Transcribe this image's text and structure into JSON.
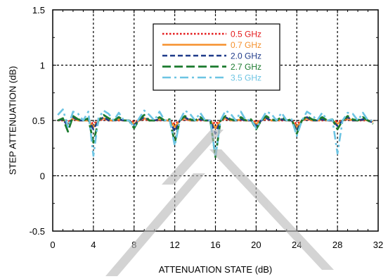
{
  "chart_data": {
    "type": "line",
    "xlabel": "ATTENUATION STATE (dB)",
    "ylabel": "STEP ATTENUATION (dB)",
    "xlim": [
      0,
      32
    ],
    "ylim": [
      -0.5,
      1.5
    ],
    "xticks": [
      0,
      4,
      8,
      12,
      16,
      20,
      24,
      28,
      32
    ],
    "yticks": [
      -0.5,
      0,
      0.5,
      1,
      1.5
    ],
    "xtick_labels": [
      "0",
      "4",
      "8",
      "12",
      "16",
      "20",
      "24",
      "28",
      "32"
    ],
    "ytick_labels": [
      "-0.5",
      "0",
      "0.5",
      "1",
      "1.5"
    ],
    "grid": true,
    "legend_position": "top-right",
    "x": [
      0.5,
      1,
      1.5,
      2,
      2.5,
      3,
      3.5,
      4,
      4.5,
      5,
      5.5,
      6,
      6.5,
      7,
      7.5,
      8,
      8.5,
      9,
      9.5,
      10,
      10.5,
      11,
      11.5,
      12,
      12.5,
      13,
      13.5,
      14,
      14.5,
      15,
      15.5,
      16,
      16.5,
      17,
      17.5,
      18,
      18.5,
      19,
      19.5,
      20,
      20.5,
      21,
      21.5,
      22,
      22.5,
      23,
      23.5,
      24,
      24.5,
      25,
      25.5,
      26,
      26.5,
      27,
      27.5,
      28,
      28.5,
      29,
      29.5,
      30,
      30.5,
      31,
      31.5
    ],
    "series": [
      {
        "name": "0.5 GHz",
        "color": "#e41a1c",
        "dash": "dotted",
        "values": [
          0.5,
          0.5,
          0.49,
          0.51,
          0.5,
          0.5,
          0.5,
          0.47,
          0.5,
          0.51,
          0.5,
          0.5,
          0.5,
          0.5,
          0.5,
          0.49,
          0.5,
          0.51,
          0.5,
          0.5,
          0.5,
          0.5,
          0.5,
          0.47,
          0.5,
          0.51,
          0.5,
          0.5,
          0.5,
          0.5,
          0.5,
          0.47,
          0.5,
          0.51,
          0.5,
          0.5,
          0.5,
          0.5,
          0.5,
          0.49,
          0.5,
          0.51,
          0.5,
          0.5,
          0.5,
          0.5,
          0.5,
          0.47,
          0.5,
          0.51,
          0.5,
          0.5,
          0.5,
          0.5,
          0.5,
          0.49,
          0.5,
          0.51,
          0.5,
          0.5,
          0.5,
          0.5,
          0.5
        ]
      },
      {
        "name": "0.7 GHz",
        "color": "#f5902c",
        "dash": "solid",
        "values": [
          0.5,
          0.51,
          0.47,
          0.52,
          0.5,
          0.5,
          0.5,
          0.44,
          0.5,
          0.52,
          0.5,
          0.5,
          0.51,
          0.5,
          0.5,
          0.47,
          0.5,
          0.52,
          0.5,
          0.5,
          0.51,
          0.5,
          0.5,
          0.44,
          0.5,
          0.52,
          0.5,
          0.5,
          0.51,
          0.5,
          0.5,
          0.43,
          0.5,
          0.52,
          0.5,
          0.5,
          0.51,
          0.5,
          0.5,
          0.47,
          0.5,
          0.52,
          0.5,
          0.5,
          0.51,
          0.5,
          0.5,
          0.44,
          0.5,
          0.52,
          0.5,
          0.5,
          0.51,
          0.5,
          0.5,
          0.47,
          0.5,
          0.52,
          0.5,
          0.5,
          0.51,
          0.5,
          0.49
        ]
      },
      {
        "name": "2.0 GHz",
        "color": "#1f3b8a",
        "dash": "dashed",
        "values": [
          0.5,
          0.51,
          0.45,
          0.53,
          0.5,
          0.5,
          0.51,
          0.42,
          0.5,
          0.53,
          0.5,
          0.5,
          0.51,
          0.5,
          0.5,
          0.46,
          0.5,
          0.53,
          0.5,
          0.5,
          0.51,
          0.5,
          0.5,
          0.4,
          0.5,
          0.53,
          0.5,
          0.5,
          0.51,
          0.5,
          0.5,
          0.38,
          0.5,
          0.53,
          0.5,
          0.5,
          0.51,
          0.5,
          0.5,
          0.45,
          0.5,
          0.52,
          0.5,
          0.5,
          0.51,
          0.5,
          0.5,
          0.41,
          0.5,
          0.53,
          0.5,
          0.5,
          0.51,
          0.5,
          0.5,
          0.45,
          0.5,
          0.53,
          0.5,
          0.5,
          0.51,
          0.5,
          0.48
        ]
      },
      {
        "name": "2.7 GHz",
        "color": "#1b7a2e",
        "dash": "long-dashed",
        "values": [
          0.5,
          0.52,
          0.4,
          0.54,
          0.51,
          0.5,
          0.52,
          0.3,
          0.5,
          0.55,
          0.52,
          0.5,
          0.53,
          0.5,
          0.5,
          0.43,
          0.51,
          0.55,
          0.5,
          0.5,
          0.53,
          0.5,
          0.51,
          0.3,
          0.5,
          0.54,
          0.51,
          0.5,
          0.53,
          0.5,
          0.5,
          0.17,
          0.5,
          0.54,
          0.51,
          0.5,
          0.53,
          0.5,
          0.51,
          0.42,
          0.5,
          0.54,
          0.51,
          0.5,
          0.53,
          0.5,
          0.51,
          0.38,
          0.5,
          0.54,
          0.51,
          0.5,
          0.53,
          0.5,
          0.51,
          0.42,
          0.5,
          0.54,
          0.51,
          0.5,
          0.53,
          0.5,
          0.47
        ]
      },
      {
        "name": "3.5 GHz",
        "color": "#6cc4e3",
        "dash": "long-dash-dot",
        "values": [
          0.55,
          0.6,
          0.44,
          0.58,
          0.56,
          0.5,
          0.58,
          0.18,
          0.52,
          0.59,
          0.56,
          0.5,
          0.57,
          0.5,
          0.5,
          0.44,
          0.52,
          0.59,
          0.55,
          0.5,
          0.58,
          0.5,
          0.51,
          0.27,
          0.5,
          0.59,
          0.56,
          0.5,
          0.57,
          0.5,
          0.5,
          0.17,
          0.5,
          0.59,
          0.56,
          0.5,
          0.58,
          0.5,
          0.51,
          0.43,
          0.5,
          0.58,
          0.56,
          0.5,
          0.57,
          0.5,
          0.51,
          0.36,
          0.5,
          0.58,
          0.55,
          0.5,
          0.57,
          0.5,
          0.51,
          0.2,
          0.5,
          0.57,
          0.56,
          0.5,
          0.57,
          0.5,
          0.5
        ]
      }
    ]
  }
}
